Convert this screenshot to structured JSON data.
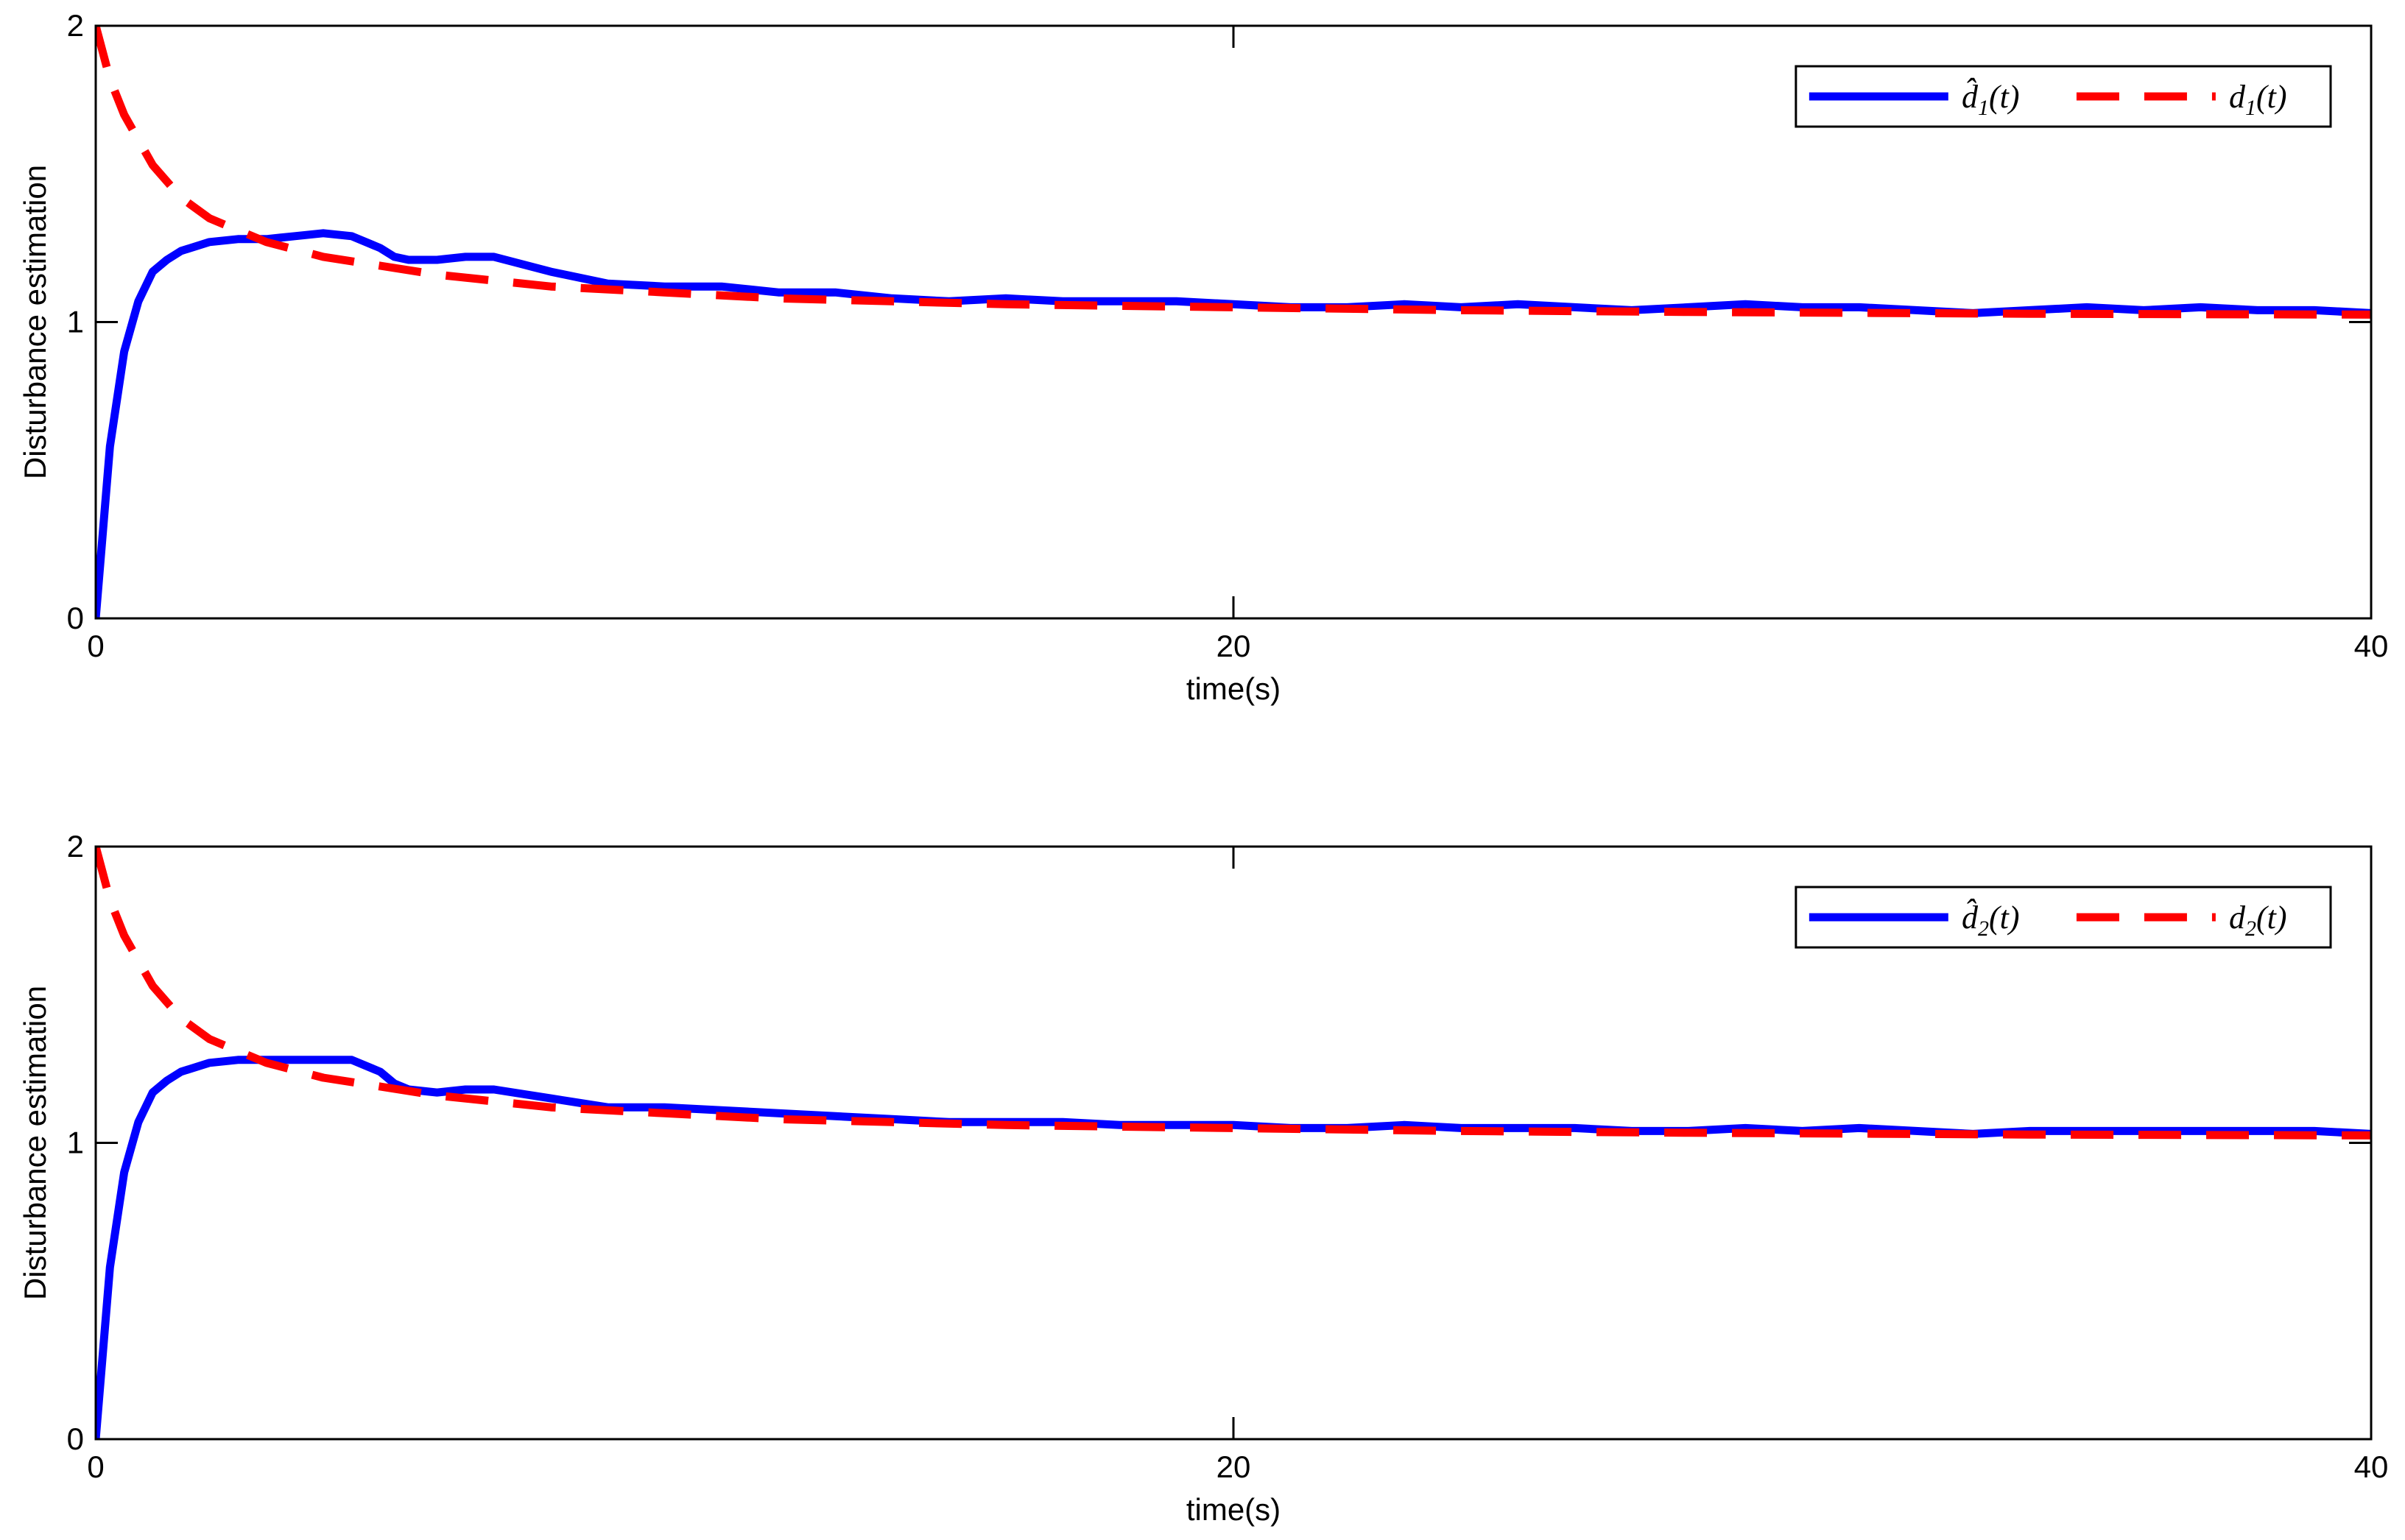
{
  "chart_data": [
    {
      "type": "line",
      "title": "",
      "xlabel": "time(s)",
      "ylabel": "Disturbance estimation",
      "xlim": [
        0,
        40
      ],
      "ylim": [
        0,
        2
      ],
      "xticks": [
        0,
        20,
        40
      ],
      "yticks": [
        0,
        1,
        2
      ],
      "legend_position": "top-right",
      "series": [
        {
          "name": "d̂1(t)",
          "legend_base": "d̂",
          "legend_sub": "1",
          "legend_arg": "(t)",
          "color": "#0000ff",
          "style": "solid",
          "x": [
            0,
            0.25,
            0.5,
            0.75,
            1,
            1.25,
            1.5,
            2,
            2.5,
            3,
            3.5,
            4,
            4.5,
            5,
            5.25,
            5.5,
            6,
            6.5,
            7,
            8,
            9,
            10,
            11,
            12,
            13,
            14,
            15,
            16,
            17,
            18,
            19,
            20,
            21,
            22,
            23,
            24,
            25,
            26,
            27,
            28,
            29,
            30,
            31,
            32,
            33,
            34,
            35,
            36,
            37,
            38,
            39,
            40
          ],
          "y": [
            0,
            0.58,
            0.9,
            1.07,
            1.17,
            1.21,
            1.24,
            1.27,
            1.28,
            1.28,
            1.29,
            1.3,
            1.29,
            1.25,
            1.22,
            1.21,
            1.21,
            1.22,
            1.22,
            1.17,
            1.13,
            1.12,
            1.12,
            1.1,
            1.1,
            1.08,
            1.07,
            1.08,
            1.07,
            1.07,
            1.07,
            1.06,
            1.05,
            1.05,
            1.06,
            1.05,
            1.06,
            1.05,
            1.04,
            1.05,
            1.06,
            1.05,
            1.05,
            1.04,
            1.03,
            1.04,
            1.05,
            1.04,
            1.05,
            1.04,
            1.04,
            1.03
          ]
        },
        {
          "name": "d1(t)",
          "legend_base": "d",
          "legend_sub": "1",
          "legend_arg": "(t)",
          "color": "#ff0000",
          "style": "dashed",
          "x": [
            0,
            0.25,
            0.5,
            1,
            1.5,
            2,
            2.5,
            3,
            4,
            5,
            6,
            7,
            8,
            10,
            12,
            14,
            16,
            18,
            20,
            22,
            24,
            26,
            28,
            30,
            32,
            34,
            36,
            38,
            40
          ],
          "y": [
            2.0,
            1.82,
            1.7,
            1.53,
            1.42,
            1.35,
            1.31,
            1.27,
            1.22,
            1.19,
            1.16,
            1.14,
            1.12,
            1.1,
            1.08,
            1.07,
            1.06,
            1.055,
            1.05,
            1.045,
            1.04,
            1.037,
            1.034,
            1.032,
            1.03,
            1.028,
            1.027,
            1.026,
            1.025
          ]
        }
      ]
    },
    {
      "type": "line",
      "title": "",
      "xlabel": "time(s)",
      "ylabel": "Disturbance estimation",
      "xlim": [
        0,
        40
      ],
      "ylim": [
        0,
        2
      ],
      "xticks": [
        0,
        20,
        40
      ],
      "yticks": [
        0,
        1,
        2
      ],
      "legend_position": "top-right",
      "series": [
        {
          "name": "d̂2(t)",
          "legend_base": "d̂",
          "legend_sub": "2",
          "legend_arg": "(t)",
          "color": "#0000ff",
          "style": "solid",
          "x": [
            0,
            0.25,
            0.5,
            0.75,
            1,
            1.25,
            1.5,
            2,
            2.5,
            3,
            3.5,
            4,
            4.5,
            5,
            5.25,
            5.5,
            6,
            6.5,
            7,
            8,
            9,
            10,
            11,
            12,
            13,
            14,
            15,
            16,
            17,
            18,
            19,
            20,
            21,
            22,
            23,
            24,
            25,
            26,
            27,
            28,
            29,
            30,
            31,
            32,
            33,
            34,
            35,
            36,
            37,
            38,
            39,
            40
          ],
          "y": [
            0,
            0.58,
            0.9,
            1.07,
            1.17,
            1.21,
            1.24,
            1.27,
            1.28,
            1.28,
            1.28,
            1.28,
            1.28,
            1.24,
            1.2,
            1.18,
            1.17,
            1.18,
            1.18,
            1.15,
            1.12,
            1.12,
            1.11,
            1.1,
            1.09,
            1.08,
            1.07,
            1.07,
            1.07,
            1.06,
            1.06,
            1.06,
            1.05,
            1.05,
            1.06,
            1.05,
            1.05,
            1.05,
            1.04,
            1.04,
            1.05,
            1.04,
            1.05,
            1.04,
            1.03,
            1.04,
            1.04,
            1.04,
            1.04,
            1.04,
            1.04,
            1.03
          ]
        },
        {
          "name": "d2(t)",
          "legend_base": "d",
          "legend_sub": "2",
          "legend_arg": "(t)",
          "color": "#ff0000",
          "style": "dashed",
          "x": [
            0,
            0.25,
            0.5,
            1,
            1.5,
            2,
            2.5,
            3,
            4,
            5,
            6,
            7,
            8,
            10,
            12,
            14,
            16,
            18,
            20,
            22,
            24,
            26,
            28,
            30,
            32,
            34,
            36,
            38,
            40
          ],
          "y": [
            2.0,
            1.82,
            1.7,
            1.53,
            1.42,
            1.35,
            1.31,
            1.27,
            1.22,
            1.19,
            1.16,
            1.14,
            1.12,
            1.1,
            1.08,
            1.07,
            1.06,
            1.055,
            1.05,
            1.045,
            1.04,
            1.037,
            1.034,
            1.032,
            1.03,
            1.028,
            1.027,
            1.026,
            1.025
          ]
        }
      ]
    }
  ]
}
